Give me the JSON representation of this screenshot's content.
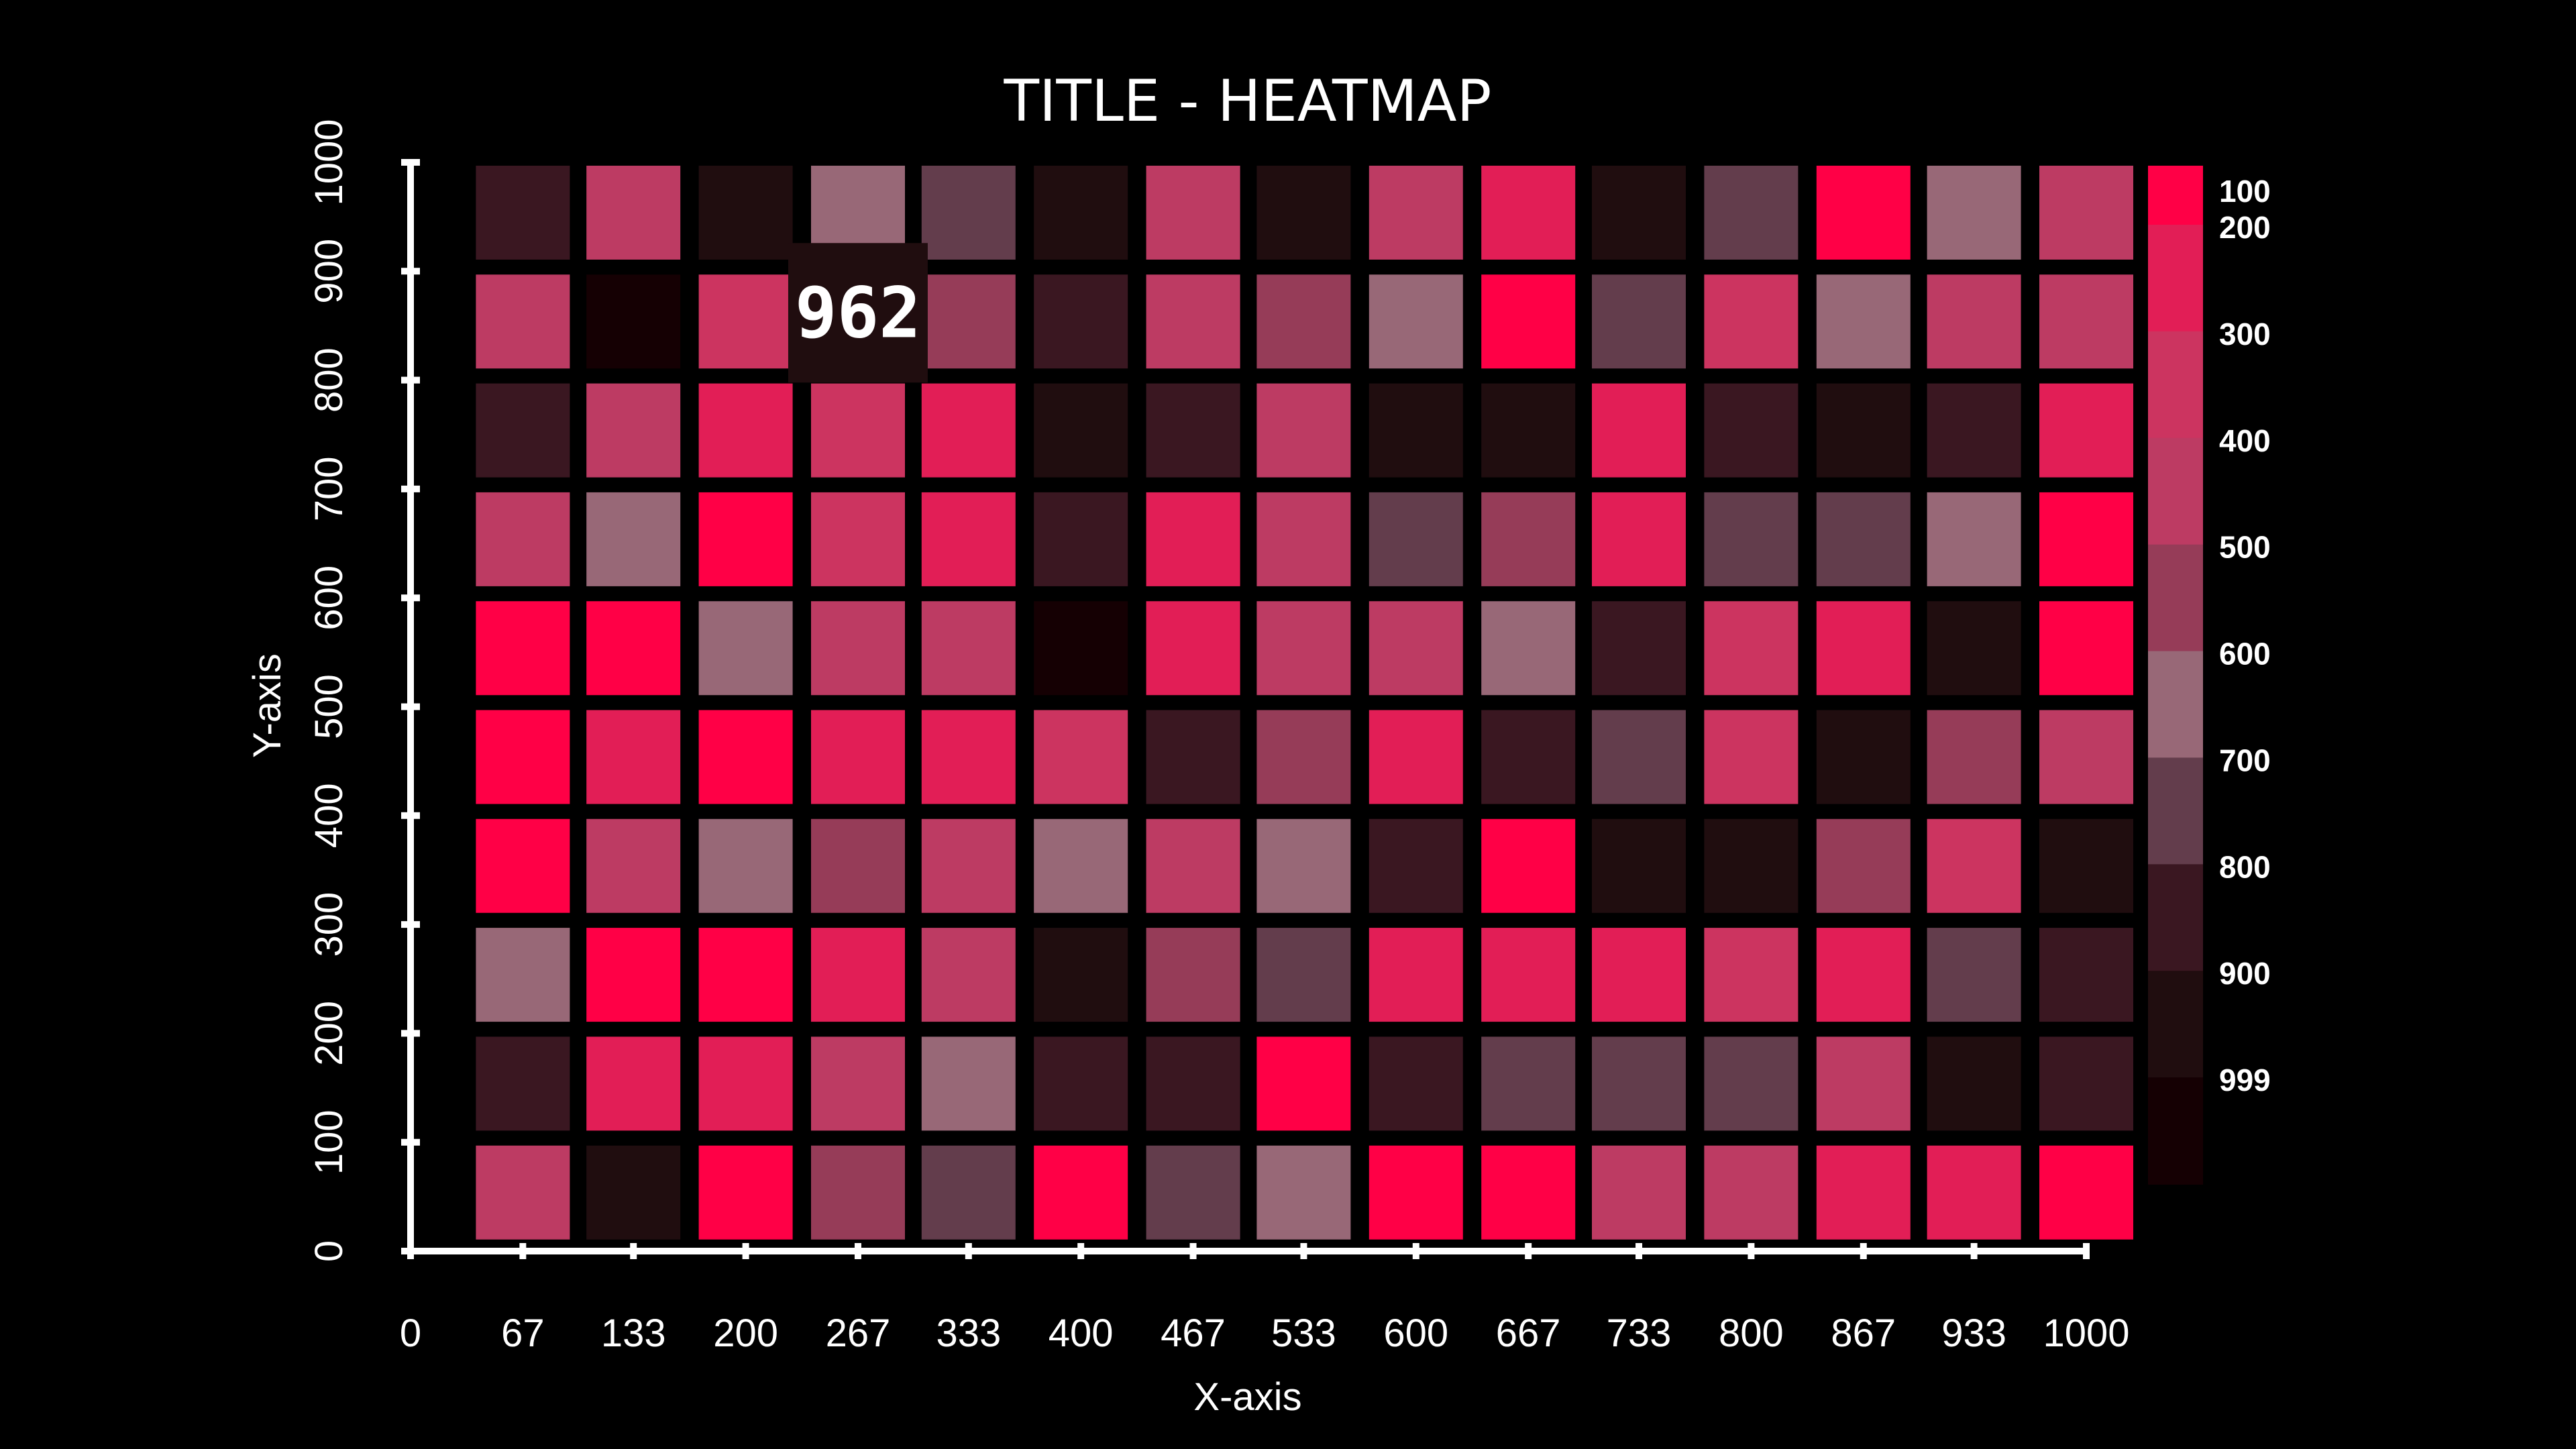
{
  "chart_data": {
    "type": "heatmap",
    "title": "TITLE - HEATMAP",
    "xlabel": "X-axis",
    "ylabel": "Y-axis",
    "xlim": [
      0,
      1000
    ],
    "ylim": [
      0,
      1000
    ],
    "x_ticks": [
      "0",
      "67",
      "133",
      "200",
      "267",
      "333",
      "400",
      "467",
      "533",
      "600",
      "667",
      "733",
      "800",
      "867",
      "933",
      "1000"
    ],
    "y_ticks": [
      "0",
      "100",
      "200",
      "300",
      "400",
      "500",
      "600",
      "700",
      "800",
      "900",
      "1000"
    ],
    "x_centers": [
      67,
      133,
      200,
      267,
      333,
      400,
      467,
      533,
      600,
      667,
      733,
      800,
      867,
      933,
      1000
    ],
    "y_centers": [
      1000,
      900,
      800,
      700,
      600,
      500,
      400,
      300,
      200,
      100
    ],
    "values": [
      [
        850,
        380,
        900,
        600,
        700,
        900,
        380,
        900,
        380,
        250,
        900,
        700,
        100,
        600,
        380
      ],
      [
        380,
        999,
        350,
        962,
        500,
        850,
        380,
        500,
        600,
        100,
        700,
        350,
        600,
        380,
        400
      ],
      [
        850,
        380,
        250,
        350,
        250,
        900,
        850,
        380,
        900,
        900,
        250,
        850,
        900,
        850,
        250
      ],
      [
        400,
        600,
        100,
        350,
        250,
        850,
        250,
        380,
        700,
        500,
        250,
        700,
        700,
        600,
        100
      ],
      [
        100,
        100,
        600,
        400,
        400,
        999,
        250,
        380,
        380,
        600,
        850,
        350,
        250,
        900,
        100
      ],
      [
        100,
        250,
        100,
        250,
        250,
        350,
        850,
        500,
        250,
        850,
        700,
        350,
        900,
        500,
        400
      ],
      [
        100,
        380,
        600,
        500,
        380,
        600,
        380,
        600,
        850,
        100,
        900,
        900,
        500,
        350,
        900
      ],
      [
        600,
        100,
        100,
        250,
        380,
        900,
        500,
        700,
        250,
        250,
        250,
        350,
        250,
        700,
        850
      ],
      [
        850,
        250,
        250,
        380,
        600,
        850,
        850,
        100,
        850,
        700,
        700,
        700,
        380,
        900,
        850
      ],
      [
        380,
        900,
        100,
        500,
        700,
        100,
        700,
        600,
        100,
        100,
        380,
        380,
        250,
        250,
        100
      ]
    ],
    "colorscale": {
      "labels": [
        "100",
        "200",
        "300",
        "400",
        "500",
        "600",
        "700",
        "800",
        "900",
        "999"
      ],
      "colors": [
        "#ff0046",
        "#e21e56",
        "#cc3460",
        "#bd3b63",
        "#963c58",
        "#986877",
        "#633d4c",
        "#3a1721",
        "#200d0f",
        "#150003"
      ]
    },
    "highlight": {
      "row": 1,
      "col": 3,
      "value": "962"
    },
    "grid": false,
    "legend": "right"
  },
  "colors": {
    "background": "#000000",
    "axis": "#ffffff",
    "text": "#ffffff",
    "tooltip_bg": "#200d0f",
    "cell_border": "#000000"
  }
}
